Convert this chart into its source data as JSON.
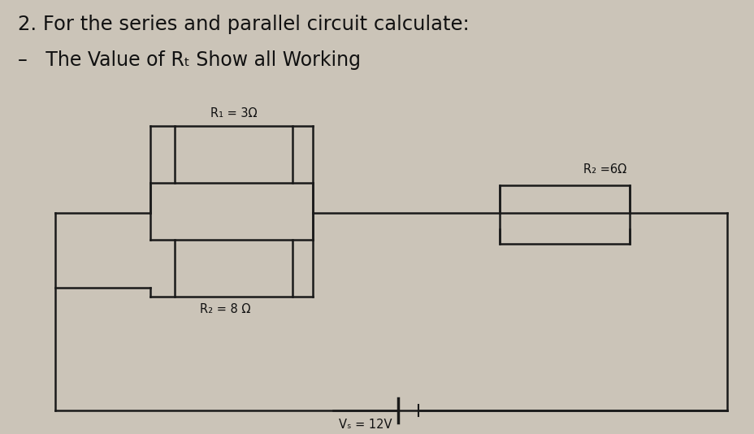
{
  "title_line1": "2. For the series and parallel circuit calculate:",
  "title_line2": "–   The Value of Rₜ Show all Working",
  "label_R1": "R₁ = 3Ω",
  "label_R2": "R₂ = 8 Ω",
  "label_R3": "R₂ =6Ω",
  "label_Vs": "Vₛ = 12V",
  "bg_color": "#cbc4b8",
  "line_color": "#1a1a1a",
  "text_color": "#111111",
  "box_fc": "#cbc4b8",
  "figsize": [
    9.29,
    5.34
  ],
  "dpi": 100
}
